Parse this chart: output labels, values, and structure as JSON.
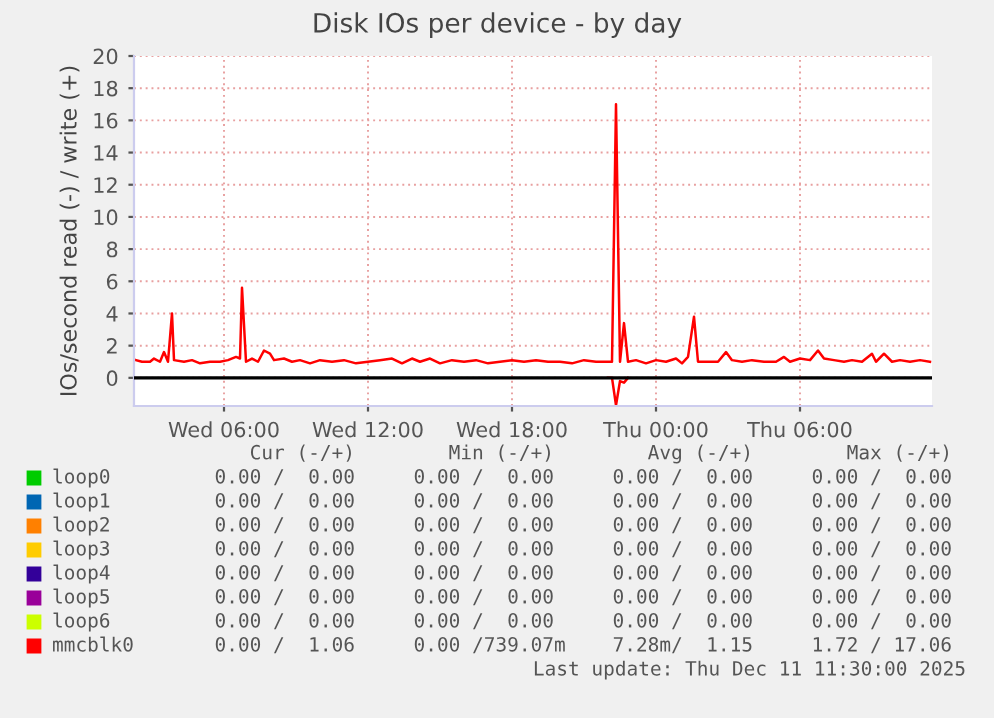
{
  "chart_data": {
    "type": "line",
    "title": "Disk IOs per device - by day",
    "ylabel": "IOs/second read (-) / write (+)",
    "xlim": [
      "2025-12-10T02:15",
      "2025-12-11T11:30"
    ],
    "ylim": [
      -1.75,
      20
    ],
    "xticks": [
      {
        "value": "2025-12-10T06:00",
        "label": "Wed 06:00"
      },
      {
        "value": "2025-12-10T12:00",
        "label": "Wed 12:00"
      },
      {
        "value": "2025-12-10T18:00",
        "label": "Wed 18:00"
      },
      {
        "value": "2025-12-11T00:00",
        "label": "Thu 00:00"
      },
      {
        "value": "2025-12-11T06:00",
        "label": "Thu 06:00"
      }
    ],
    "yticks": [
      0,
      2,
      4,
      6,
      8,
      10,
      12,
      14,
      16,
      18,
      20
    ],
    "grid": true,
    "legend": "bottom",
    "ref_lines": [
      {
        "axis": "y",
        "value": 0,
        "color": "#000000"
      }
    ],
    "series": [
      {
        "name": "loop0",
        "color": "#00cc00",
        "values": [
          null
        ]
      },
      {
        "name": "loop1",
        "color": "#0066b3",
        "values": [
          null
        ]
      },
      {
        "name": "loop2",
        "color": "#ff8000",
        "values": [
          null
        ]
      },
      {
        "name": "loop3",
        "color": "#ffcc00",
        "values": [
          null
        ]
      },
      {
        "name": "loop4",
        "color": "#330099",
        "values": [
          null
        ]
      },
      {
        "name": "loop5",
        "color": "#990099",
        "values": [
          null
        ]
      },
      {
        "name": "loop6",
        "color": "#ccff00",
        "values": [
          null
        ]
      },
      {
        "name": "mmcblk0",
        "color": "#ff0000",
        "x": [
          "2025-12-10T02:20",
          "2025-12-10T02:35",
          "2025-12-10T02:55",
          "2025-12-10T03:05",
          "2025-12-10T03:20",
          "2025-12-10T03:30",
          "2025-12-10T03:40",
          "2025-12-10T03:50",
          "2025-12-10T03:55",
          "2025-12-10T04:20",
          "2025-12-10T04:40",
          "2025-12-10T05:00",
          "2025-12-10T05:25",
          "2025-12-10T05:50",
          "2025-12-10T06:10",
          "2025-12-10T06:30",
          "2025-12-10T06:40",
          "2025-12-10T06:45",
          "2025-12-10T06:55",
          "2025-12-10T07:10",
          "2025-12-10T07:25",
          "2025-12-10T07:40",
          "2025-12-10T07:55",
          "2025-12-10T08:05",
          "2025-12-10T08:30",
          "2025-12-10T08:50",
          "2025-12-10T09:10",
          "2025-12-10T09:35",
          "2025-12-10T10:00",
          "2025-12-10T10:30",
          "2025-12-10T11:00",
          "2025-12-10T11:30",
          "2025-12-10T12:00",
          "2025-12-10T12:30",
          "2025-12-10T13:00",
          "2025-12-10T13:25",
          "2025-12-10T13:50",
          "2025-12-10T14:10",
          "2025-12-10T14:35",
          "2025-12-10T15:00",
          "2025-12-10T15:30",
          "2025-12-10T16:00",
          "2025-12-10T16:30",
          "2025-12-10T17:00",
          "2025-12-10T17:30",
          "2025-12-10T18:00",
          "2025-12-10T18:30",
          "2025-12-10T19:00",
          "2025-12-10T19:30",
          "2025-12-10T20:00",
          "2025-12-10T20:30",
          "2025-12-10T21:00",
          "2025-12-10T21:30",
          "2025-12-10T22:00",
          "2025-12-10T22:10",
          "2025-12-10T22:20",
          "2025-12-10T22:30",
          "2025-12-10T22:40",
          "2025-12-10T22:50",
          "2025-12-10T23:10",
          "2025-12-10T23:35",
          "2025-12-11T00:00",
          "2025-12-11T00:25",
          "2025-12-11T00:50",
          "2025-12-11T01:05",
          "2025-12-11T01:20",
          "2025-12-11T01:35",
          "2025-12-11T01:45",
          "2025-12-11T02:10",
          "2025-12-11T02:35",
          "2025-12-11T02:55",
          "2025-12-11T03:10",
          "2025-12-11T03:35",
          "2025-12-11T04:00",
          "2025-12-11T04:30",
          "2025-12-11T05:00",
          "2025-12-11T05:20",
          "2025-12-11T05:35",
          "2025-12-11T06:00",
          "2025-12-11T06:25",
          "2025-12-11T06:45",
          "2025-12-11T07:00",
          "2025-12-11T07:25",
          "2025-12-11T07:50",
          "2025-12-11T08:10",
          "2025-12-11T08:35",
          "2025-12-11T09:00",
          "2025-12-11T09:10",
          "2025-12-11T09:30",
          "2025-12-11T09:50",
          "2025-12-11T10:10",
          "2025-12-11T10:35",
          "2025-12-11T11:00",
          "2025-12-11T11:25"
        ],
        "values": [
          1.1,
          1.0,
          1.0,
          1.2,
          1.0,
          1.6,
          1.0,
          4.0,
          1.1,
          1.0,
          1.1,
          0.9,
          1.0,
          1.0,
          1.1,
          1.3,
          1.2,
          5.6,
          1.0,
          1.2,
          1.0,
          1.7,
          1.5,
          1.1,
          1.2,
          1.0,
          1.1,
          0.9,
          1.1,
          1.0,
          1.1,
          0.9,
          1.0,
          1.1,
          1.2,
          0.9,
          1.2,
          1.0,
          1.2,
          0.9,
          1.1,
          1.0,
          1.1,
          0.9,
          1.0,
          1.1,
          1.0,
          1.1,
          1.0,
          1.0,
          0.9,
          1.1,
          1.0,
          1.0,
          1.0,
          17.0,
          1.0,
          3.4,
          1.0,
          1.1,
          0.9,
          1.1,
          1.0,
          1.2,
          0.9,
          1.3,
          3.8,
          1.0,
          1.0,
          1.0,
          1.6,
          1.1,
          1.0,
          1.1,
          1.0,
          1.0,
          1.3,
          1.0,
          1.2,
          1.1,
          1.7,
          1.2,
          1.1,
          1.0,
          1.1,
          1.0,
          1.5,
          1.0,
          1.5,
          1.0,
          1.1,
          1.0,
          1.1,
          1.0
        ]
      },
      {
        "color": "#ff0000",
        "x": [
          "2025-12-10T22:00",
          "2025-12-10T22:10",
          "2025-12-10T22:20",
          "2025-12-10T22:30",
          "2025-12-10T22:40",
          "2025-12-10T22:50"
        ],
        "values": [
          0,
          0,
          -1.7,
          -0.2,
          -0.3,
          0
        ]
      }
    ],
    "annotations": [
      "Cur (-/+)        Min (-/+)        Avg (-/+)        Max (-/+)",
      "0.00 /  0.00     0.00 /  0.00     0.00 /  0.00     0.00 /  0.00",
      "0.00 /  0.00     0.00 /  0.00     0.00 /  0.00     0.00 /  0.00",
      "0.00 /  0.00     0.00 /  0.00     0.00 /  0.00     0.00 /  0.00",
      "0.00 /  0.00     0.00 /  0.00     0.00 /  0.00     0.00 /  0.00",
      "0.00 /  0.00     0.00 /  0.00     0.00 /  0.00     0.00 /  0.00",
      "0.00 /  0.00     0.00 /  0.00     0.00 /  0.00     0.00 /  0.00",
      "0.00 /  0.00     0.00 /  0.00     0.00 /  0.00     0.00 /  0.00",
      "0.00 /  1.06     0.00 /739.07m    7.28m/  1.15     1.72 / 17.06",
      "Last update: Thu Dec 11 11:30:00 2025"
    ]
  }
}
